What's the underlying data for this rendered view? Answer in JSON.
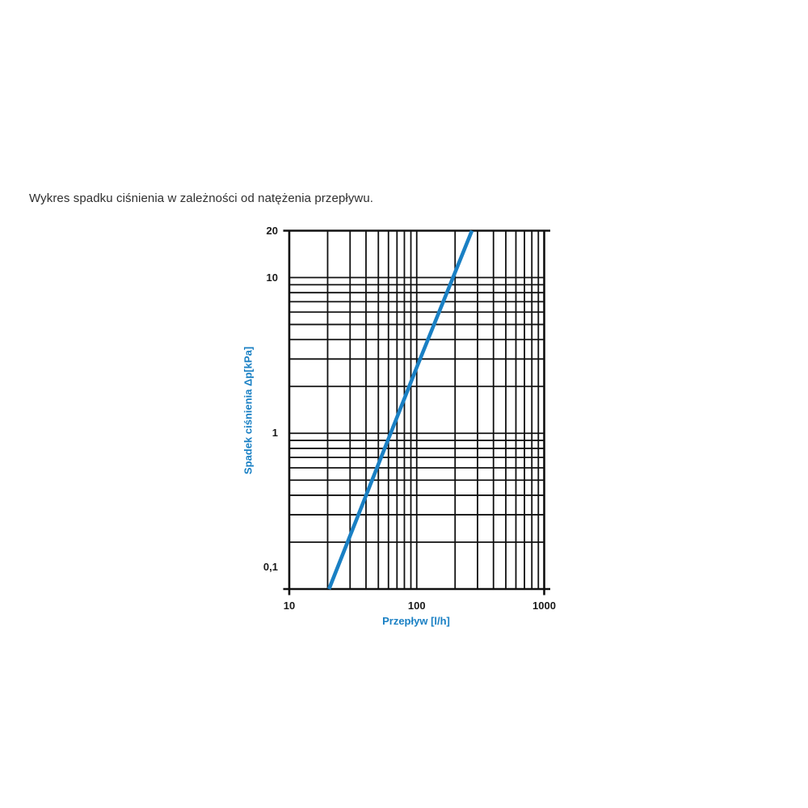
{
  "page": {
    "title": "Wykres spadku ciśnienia w zależności od natężenia przepływu."
  },
  "chart_data": {
    "type": "line",
    "title": "Wykres spadku ciśnienia w zależności od natężenia przepływu.",
    "x_axis": {
      "label": "Przepływ [l/h]",
      "scale": "log",
      "min": 10,
      "max": 1000,
      "ticks": [
        {
          "value": 10,
          "label": "10"
        },
        {
          "value": 100,
          "label": "100"
        },
        {
          "value": 1000,
          "label": "1000"
        }
      ]
    },
    "y_axis": {
      "label": "Spadek ciśnienia Δp[kPa]",
      "scale": "log",
      "min": 0.1,
      "max": 20,
      "ticks": [
        {
          "value": 0.1,
          "label": "0,1"
        },
        {
          "value": 1,
          "label": "1"
        },
        {
          "value": 10,
          "label": "10"
        },
        {
          "value": 20,
          "label": "20"
        }
      ]
    },
    "grid": {
      "visible": true,
      "minor_multiples": [
        2,
        3,
        4,
        5,
        6,
        7,
        8,
        9
      ]
    },
    "series": [
      {
        "name": "spadek-cisnienia-line",
        "color": "#1a80c4",
        "points": [
          [
            20.5,
            0.1
          ],
          [
            100,
            2.65
          ],
          [
            271,
            20
          ]
        ]
      }
    ]
  },
  "colors": {
    "accent_blue": "#1a80c4",
    "grid_line": "#101010",
    "axis_text": "#1a1a1a",
    "title_text": "#2f2f2f",
    "background": "#ffffff"
  }
}
